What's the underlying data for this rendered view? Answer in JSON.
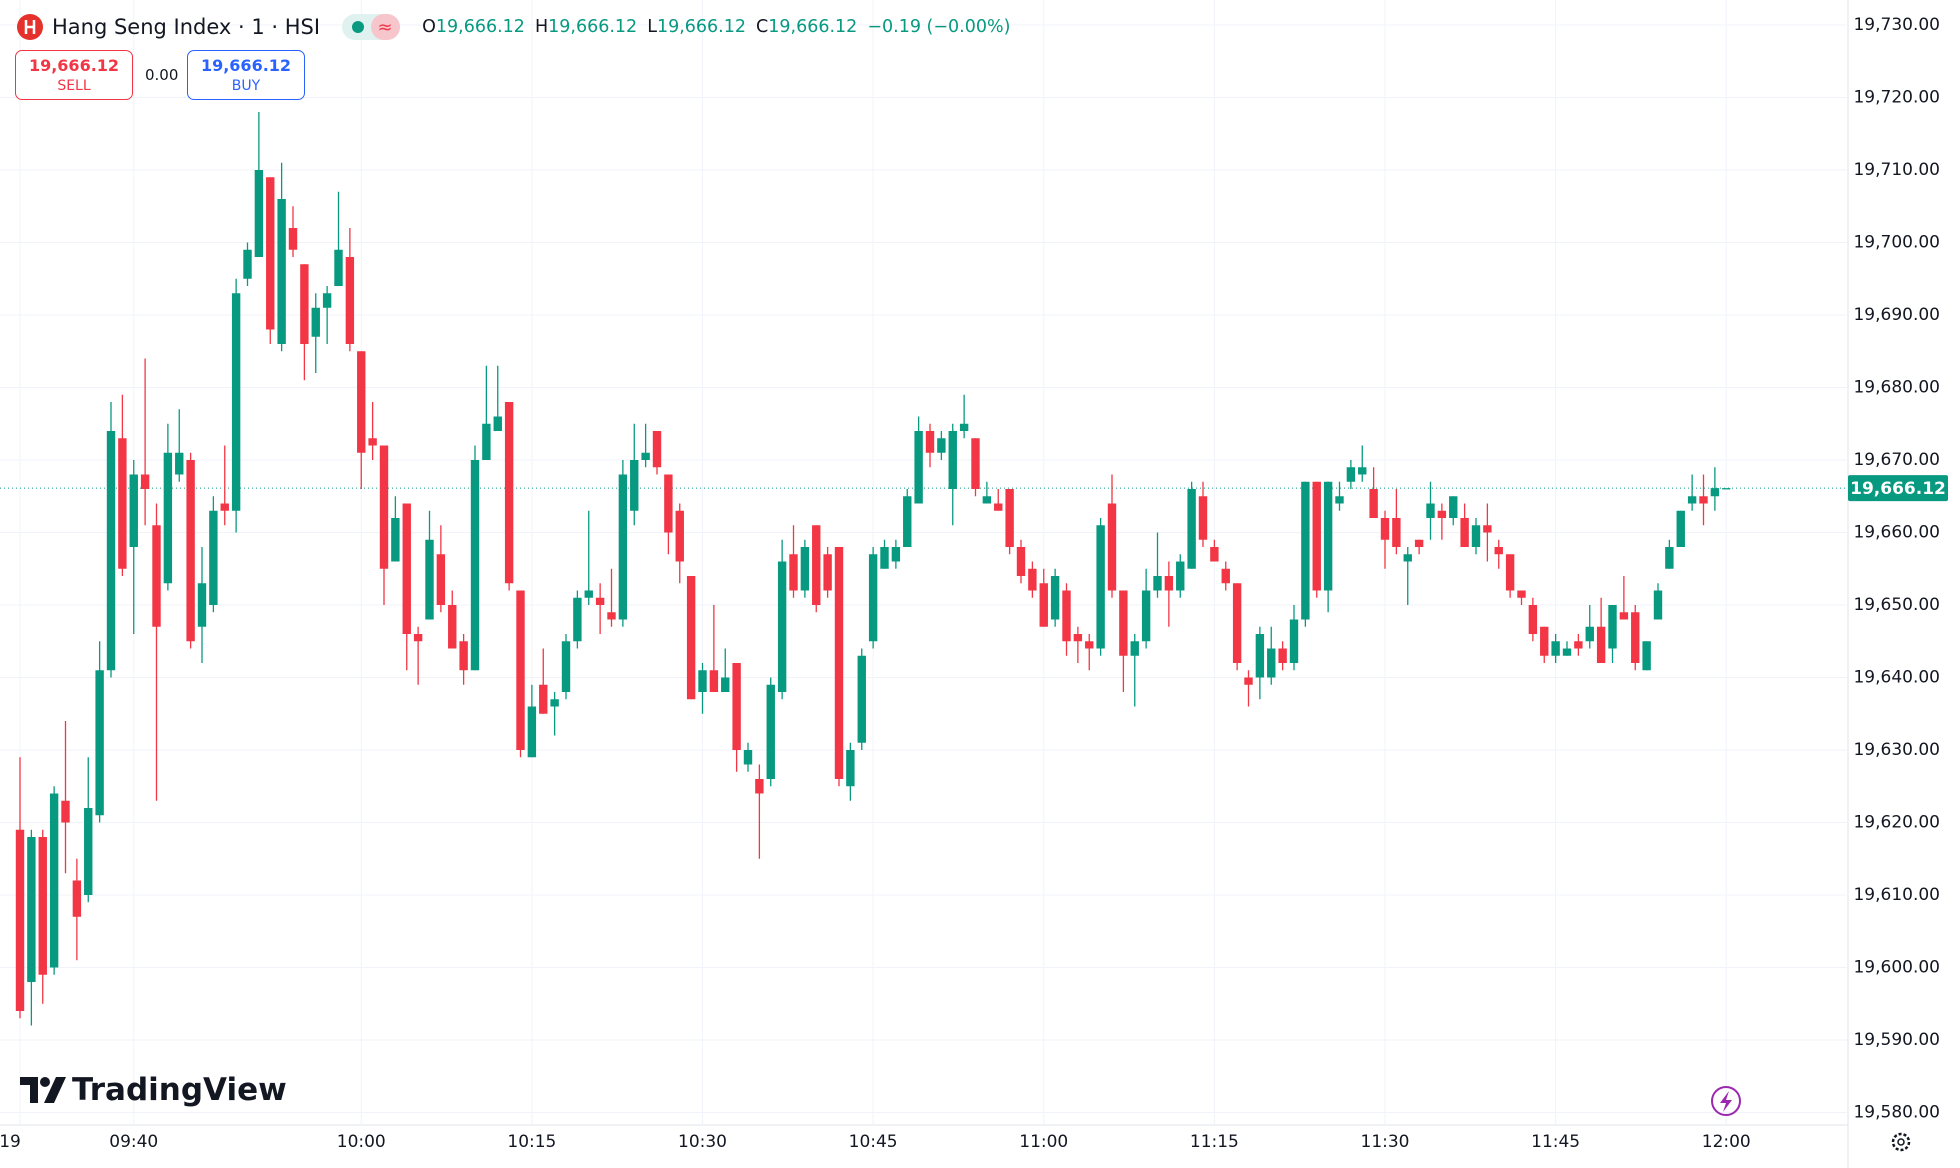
{
  "header": {
    "title": "Hang Seng Index · 1 · HSI",
    "ohlc": [
      {
        "key": "O",
        "value": "19,666.12"
      },
      {
        "key": "H",
        "value": "19,666.12"
      },
      {
        "key": "L",
        "value": "19,666.12"
      },
      {
        "key": "C",
        "value": "19,666.12"
      }
    ],
    "change": "−0.19 (−0.00%)"
  },
  "trade": {
    "sell": {
      "price": "19,666.12",
      "label": "SELL"
    },
    "spread": "0.00",
    "buy": {
      "price": "19,666.12",
      "label": "BUY"
    }
  },
  "logo": "TradingView",
  "chart_data": {
    "type": "candlestick",
    "up_color": "#089981",
    "down_color": "#f23645",
    "grid": true,
    "categories": [
      "19",
      null,
      null,
      null,
      null,
      null,
      null,
      null,
      null,
      null,
      "09:40",
      null,
      null,
      null,
      null,
      null,
      null,
      null,
      null,
      null,
      null,
      null,
      null,
      null,
      null,
      null,
      null,
      null,
      null,
      null,
      "10:00",
      null,
      null,
      null,
      null,
      null,
      null,
      null,
      null,
      null,
      null,
      null,
      null,
      null,
      null,
      "10:15",
      null,
      null,
      null,
      null,
      null,
      null,
      null,
      null,
      null,
      null,
      null,
      null,
      null,
      null,
      "10:30",
      null,
      null,
      null,
      null,
      null,
      null,
      null,
      null,
      null,
      null,
      null,
      null,
      null,
      null,
      "10:45",
      null,
      null,
      null,
      null,
      null,
      null,
      null,
      null,
      null,
      null,
      null,
      null,
      null,
      null,
      "11:00",
      null,
      null,
      null,
      null,
      null,
      null,
      null,
      null,
      null,
      null,
      null,
      null,
      null,
      null,
      "11:15",
      null,
      null,
      null,
      null,
      null,
      null,
      null,
      null,
      null,
      null,
      null,
      null,
      null,
      null,
      "11:30",
      null,
      null,
      null,
      null,
      null,
      null,
      null,
      null,
      null,
      null,
      null,
      null,
      null,
      null,
      "11:45",
      null,
      null,
      null,
      null,
      null,
      null,
      null,
      null,
      null,
      null,
      null,
      null,
      null,
      null,
      "12:00"
    ],
    "open": [
      19619,
      19598,
      19618,
      19600,
      19623,
      19612,
      19610,
      19621,
      19641,
      19673,
      19658,
      19668,
      19661,
      19653,
      19668,
      19670,
      19647,
      19650,
      19664,
      19663,
      19695,
      19698,
      19709,
      19686,
      19702,
      19697,
      19687,
      19691,
      19694,
      19698,
      19685,
      19673,
      19672,
      19656,
      19664,
      19646,
      19648,
      19657,
      19650,
      19645,
      19641,
      19670,
      19674,
      19678,
      19652,
      19629,
      19639,
      19636,
      19638,
      19645,
      19651,
      19651,
      19649,
      19648,
      19663,
      19670,
      19674,
      19668,
      19663,
      19654,
      19638,
      19641,
      19638,
      19642,
      19628,
      19626,
      19626,
      19638,
      19657,
      19652,
      19661,
      19657,
      19658,
      19625,
      19631,
      19645,
      19655,
      19656,
      19658,
      19664,
      19674,
      19671,
      19666,
      19674,
      19673,
      19664,
      19664,
      19666,
      19658,
      19655,
      19653,
      19648,
      19652,
      19646,
      19645,
      19644,
      19664,
      19652,
      19643,
      19645,
      19652,
      19654,
      19652,
      19655,
      19665,
      19658,
      19655,
      19653,
      19640,
      19640,
      19640,
      19644,
      19642,
      19648,
      19667,
      19652,
      19664,
      19667,
      19668,
      19666,
      19662,
      19662,
      19656,
      19659,
      19662,
      19663,
      19662,
      19662,
      19658,
      19661,
      19658,
      19657,
      19652,
      19650,
      19647,
      19643,
      19643,
      19645,
      19645,
      19647,
      19644,
      19649,
      19649,
      19641,
      19648,
      19655,
      19658,
      19664,
      19665,
      19665,
      19666.12
    ],
    "high": [
      19629,
      19619,
      19619,
      19625,
      19634,
      19615,
      19629,
      19645,
      19678,
      19679,
      19670,
      19684,
      19664,
      19675,
      19677,
      19671,
      19658,
      19665,
      19672,
      19695,
      19700,
      19718,
      19709,
      19711,
      19705,
      19697,
      19693,
      19694,
      19707,
      19702,
      19685,
      19678,
      19672,
      19665,
      19664,
      19647,
      19663,
      19661,
      19652,
      19646,
      19672,
      19683,
      19683,
      19678,
      19652,
      19639,
      19644,
      19638,
      19646,
      19652,
      19663,
      19653,
      19655,
      19670,
      19675,
      19675,
      19674,
      19668,
      19664,
      19654,
      19642,
      19650,
      19644,
      19642,
      19631,
      19628,
      19640,
      19659,
      19661,
      19659,
      19661,
      19658,
      19658,
      19631,
      19644,
      19658,
      19659,
      19659,
      19666,
      19676,
      19675,
      19674,
      19675,
      19679,
      19673,
      19667,
      19666,
      19666,
      19659,
      19656,
      19655,
      19655,
      19653,
      19647,
      19646,
      19662,
      19668,
      19652,
      19646,
      19655,
      19660,
      19656,
      19657,
      19667,
      19667,
      19659,
      19656,
      19653,
      19641,
      19647,
      19647,
      19645,
      19650,
      19667,
      19667,
      19667,
      19667,
      19670,
      19672,
      19669,
      19663,
      19666,
      19658,
      19659,
      19667,
      19664,
      19665,
      19664,
      19662,
      19664,
      19659,
      19657,
      19652,
      19651,
      19647,
      19646,
      19645,
      19646,
      19650,
      19651,
      19650,
      19654,
      19650,
      19645,
      19653,
      19659,
      19663,
      19668,
      19668,
      19669,
      19666.12
    ],
    "low": [
      19593,
      19592,
      19595,
      19599,
      19613,
      19601,
      19609,
      19620,
      19640,
      19654,
      19646,
      19661,
      19623,
      19652,
      19667,
      19644,
      19642,
      19649,
      19661,
      19660,
      19694,
      19698,
      19686,
      19685,
      19698,
      19681,
      19682,
      19686,
      19694,
      19685,
      19666,
      19670,
      19650,
      19656,
      19641,
      19639,
      19648,
      19649,
      19644,
      19639,
      19641,
      19670,
      19674,
      19652,
      19629,
      19629,
      19635,
      19632,
      19637,
      19644,
      19650,
      19646,
      19647,
      19647,
      19661,
      19669,
      19668,
      19657,
      19653,
      19637,
      19635,
      19638,
      19638,
      19627,
      19627,
      19615,
      19625,
      19637,
      19651,
      19651,
      19649,
      19651,
      19625,
      19623,
      19630,
      19644,
      19655,
      19655,
      19658,
      19664,
      19669,
      19670,
      19661,
      19673,
      19665,
      19664,
      19663,
      19657,
      19653,
      19651,
      19647,
      19647,
      19643,
      19642,
      19641,
      19643,
      19651,
      19638,
      19636,
      19644,
      19651,
      19647,
      19651,
      19655,
      19658,
      19656,
      19652,
      19641,
      19636,
      19637,
      19639,
      19641,
      19641,
      19647,
      19651,
      19649,
      19663,
      19666,
      19667,
      19662,
      19655,
      19657,
      19650,
      19657,
      19659,
      19659,
      19661,
      19658,
      19657,
      19656,
      19655,
      19651,
      19650,
      19645,
      19642,
      19642,
      19643,
      19643,
      19644,
      19642,
      19642,
      19648,
      19641,
      19641,
      19648,
      19655,
      19658,
      19663,
      19661,
      19663,
      19666.12
    ],
    "close": [
      19594,
      19618,
      19599,
      19624,
      19620,
      19607,
      19622,
      19641,
      19674,
      19655,
      19668,
      19666,
      19647,
      19671,
      19671,
      19645,
      19653,
      19663,
      19663,
      19693,
      19699,
      19710,
      19688,
      19706,
      19699,
      19686,
      19691,
      19693,
      19699,
      19686,
      19671,
      19672,
      19655,
      19662,
      19646,
      19645,
      19659,
      19650,
      19644,
      19641,
      19670,
      19675,
      19676,
      19653,
      19630,
      19636,
      19635,
      19637,
      19645,
      19651,
      19652,
      19650,
      19648,
      19668,
      19670,
      19671,
      19669,
      19660,
      19656,
      19637,
      19641,
      19638,
      19640,
      19630,
      19630,
      19624,
      19639,
      19656,
      19652,
      19658,
      19650,
      19652,
      19626,
      19630,
      19643,
      19657,
      19658,
      19658,
      19665,
      19674,
      19671,
      19673,
      19674,
      19675,
      19666,
      19665,
      19663,
      19658,
      19654,
      19652,
      19647,
      19654,
      19645,
      19645,
      19644,
      19661,
      19652,
      19643,
      19645,
      19652,
      19654,
      19652,
      19656,
      19666,
      19659,
      19656,
      19653,
      19642,
      19639,
      19646,
      19644,
      19642,
      19648,
      19667,
      19652,
      19667,
      19665,
      19669,
      19669,
      19662,
      19659,
      19658,
      19657,
      19658,
      19664,
      19662,
      19665,
      19658,
      19661,
      19660,
      19657,
      19652,
      19651,
      19646,
      19643,
      19645,
      19644,
      19644,
      19647,
      19642,
      19650,
      19648,
      19642,
      19645,
      19652,
      19658,
      19663,
      19665,
      19664,
      19666.12,
      19666.12
    ],
    "ylim": [
      19579,
      19733
    ],
    "yticks": [
      {
        "value": 19580,
        "label": "19,580.00"
      },
      {
        "value": 19590,
        "label": "19,590.00"
      },
      {
        "value": 19600,
        "label": "19,600.00"
      },
      {
        "value": 19610,
        "label": "19,610.00"
      },
      {
        "value": 19620,
        "label": "19,620.00"
      },
      {
        "value": 19630,
        "label": "19,630.00"
      },
      {
        "value": 19640,
        "label": "19,640.00"
      },
      {
        "value": 19650,
        "label": "19,650.00"
      },
      {
        "value": 19660,
        "label": "19,660.00"
      },
      {
        "value": 19670,
        "label": "19,670.00"
      },
      {
        "value": 19680,
        "label": "19,680.00"
      },
      {
        "value": 19690,
        "label": "19,690.00"
      },
      {
        "value": 19700,
        "label": "19,700.00"
      },
      {
        "value": 19710,
        "label": "19,710.00"
      },
      {
        "value": 19720,
        "label": "19,720.00"
      },
      {
        "value": 19730,
        "label": "19,730.00"
      }
    ],
    "last_price": {
      "value": 19666.12,
      "label": "19,666.12"
    }
  }
}
